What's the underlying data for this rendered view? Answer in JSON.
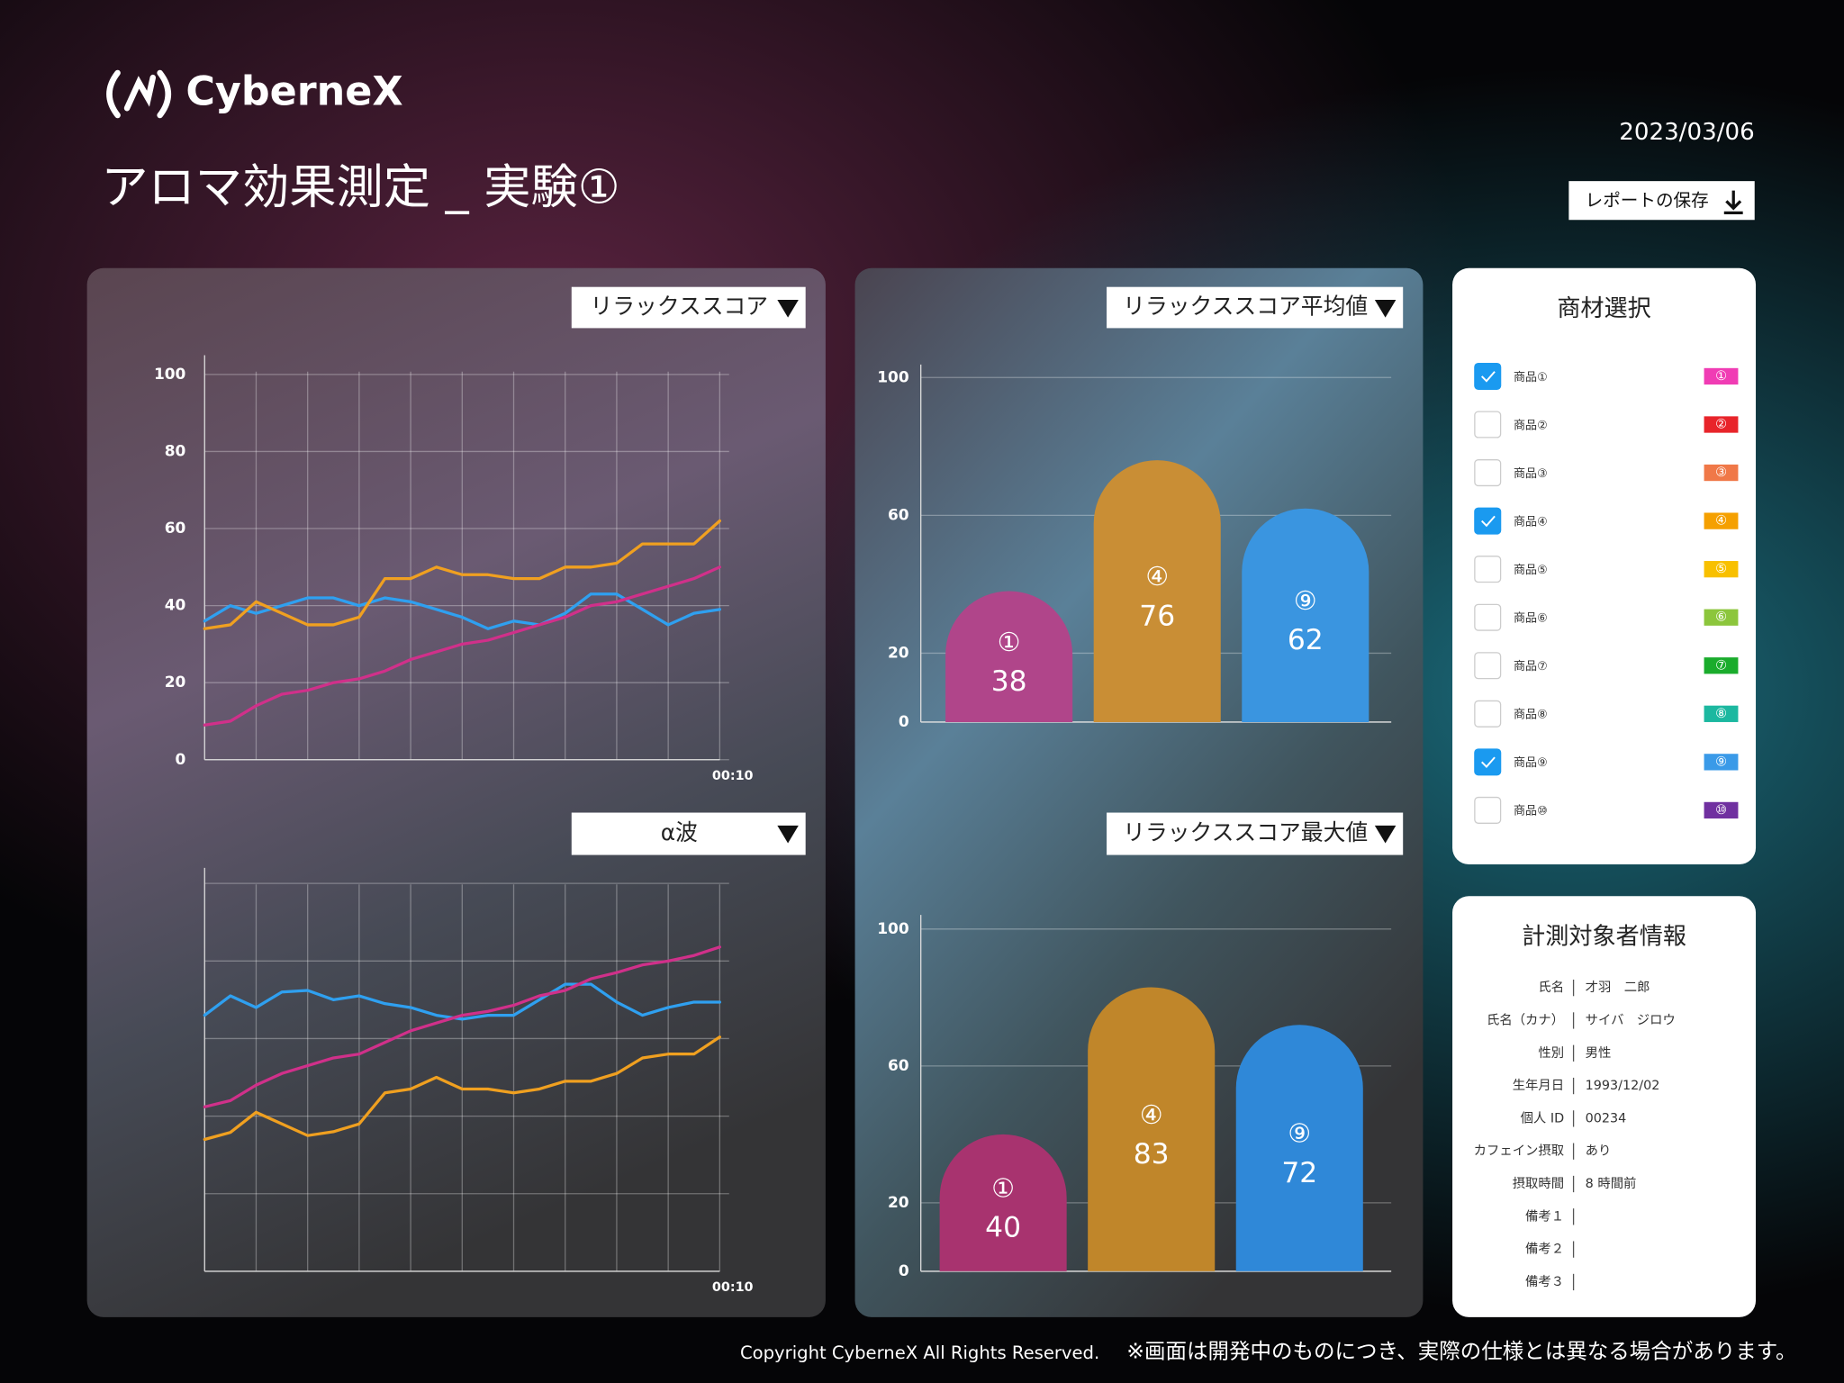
{
  "header": {
    "logo": "CyberneX",
    "title": "アロマ効果測定 _ 実験①",
    "date": "2023/03/06",
    "save_button": "レポートの保存"
  },
  "chart_data": [
    {
      "type": "line",
      "title": "リラックススコア",
      "x": [
        0,
        0.5,
        1,
        1.5,
        2,
        2.5,
        3,
        3.5,
        4,
        4.5,
        5,
        5.5,
        6,
        6.5,
        7,
        7.5,
        8,
        8.5,
        9,
        9.5,
        10
      ],
      "xlim": [
        0,
        10
      ],
      "xticks": [
        {
          "value": 10,
          "label": "00:10"
        }
      ],
      "xgrid": [
        1,
        2,
        3,
        4,
        5,
        6,
        7,
        8,
        9,
        10
      ],
      "ylim": [
        0,
        105
      ],
      "yticks": [
        0,
        20,
        40,
        60,
        80,
        100
      ],
      "grid": true,
      "series": [
        {
          "color": "#2fa0f0",
          "values": [
            36,
            40,
            38,
            40,
            42,
            42,
            40,
            42,
            41,
            39,
            37,
            34,
            36,
            35,
            38,
            43,
            43,
            39,
            35,
            38,
            39
          ]
        },
        {
          "color": "#f0a020",
          "values": [
            34,
            35,
            41,
            38,
            35,
            35,
            37,
            47,
            47,
            50,
            48,
            48,
            47,
            47,
            50,
            50,
            51,
            56,
            56,
            56,
            62
          ]
        },
        {
          "color": "#d0308a",
          "values": [
            9,
            10,
            14,
            17,
            18,
            20,
            21,
            23,
            26,
            28,
            30,
            31,
            33,
            35,
            37,
            40,
            41,
            43,
            45,
            47,
            50
          ]
        }
      ]
    },
    {
      "type": "line",
      "title": "α波",
      "x": [
        0,
        0.5,
        1,
        1.5,
        2,
        2.5,
        3,
        3.5,
        4,
        4.5,
        5,
        5.5,
        6,
        6.5,
        7,
        7.5,
        8,
        8.5,
        9,
        9.5,
        10
      ],
      "xlim": [
        0,
        10
      ],
      "xticks": [
        {
          "value": 10,
          "label": "00:10"
        }
      ],
      "xgrid": [
        1,
        2,
        3,
        4,
        5,
        6,
        7,
        8,
        9,
        10
      ],
      "ylim": [
        0,
        5.2
      ],
      "ygrid": [
        1,
        2,
        3,
        4,
        5
      ],
      "series": [
        {
          "color": "#2fa0f0",
          "values": [
            3.3,
            3.55,
            3.4,
            3.6,
            3.62,
            3.5,
            3.55,
            3.45,
            3.4,
            3.3,
            3.25,
            3.3,
            3.3,
            3.5,
            3.7,
            3.7,
            3.47,
            3.3,
            3.4,
            3.47,
            3.47
          ]
        },
        {
          "color": "#f0a020",
          "values": [
            1.7,
            1.79,
            2.05,
            1.9,
            1.75,
            1.8,
            1.9,
            2.3,
            2.35,
            2.5,
            2.35,
            2.35,
            2.3,
            2.35,
            2.45,
            2.45,
            2.55,
            2.75,
            2.8,
            2.8,
            3.02
          ]
        },
        {
          "color": "#d0308a",
          "values": [
            2.12,
            2.2,
            2.4,
            2.55,
            2.65,
            2.75,
            2.8,
            2.95,
            3.1,
            3.2,
            3.3,
            3.35,
            3.43,
            3.55,
            3.62,
            3.77,
            3.85,
            3.95,
            4.0,
            4.07,
            4.18
          ]
        }
      ]
    },
    {
      "type": "bar",
      "title": "リラックススコア平均値",
      "categories": [
        "①",
        "④",
        "⑨"
      ],
      "values": [
        38,
        76,
        62
      ],
      "colors": [
        "#b0458a",
        "#c98e35",
        "#3a95e0"
      ],
      "ylim": [
        0,
        100
      ],
      "yticks": [
        0,
        20,
        60,
        100
      ],
      "grid": true
    },
    {
      "type": "bar",
      "title": "リラックススコア最大値",
      "categories": [
        "①",
        "④",
        "⑨"
      ],
      "values": [
        40,
        83,
        72
      ],
      "colors": [
        "#a8336f",
        "#c0862a",
        "#2f88d8"
      ],
      "ylim": [
        0,
        100
      ],
      "yticks": [
        0,
        20,
        60,
        100
      ],
      "grid": true
    }
  ],
  "product_panel": {
    "title": "商材選択",
    "items": [
      {
        "label": "商品①",
        "checked": true,
        "badge": "①",
        "color": "#f03cb4"
      },
      {
        "label": "商品②",
        "checked": false,
        "badge": "②",
        "color": "#e8242a"
      },
      {
        "label": "商品③",
        "checked": false,
        "badge": "③",
        "color": "#f07848"
      },
      {
        "label": "商品④",
        "checked": true,
        "badge": "④",
        "color": "#f5a000"
      },
      {
        "label": "商品⑤",
        "checked": false,
        "badge": "⑤",
        "color": "#f8c000"
      },
      {
        "label": "商品⑥",
        "checked": false,
        "badge": "⑥",
        "color": "#8cc63c"
      },
      {
        "label": "商品⑦",
        "checked": false,
        "badge": "⑦",
        "color": "#1aac2c"
      },
      {
        "label": "商品⑧",
        "checked": false,
        "badge": "⑧",
        "color": "#1cb8a0"
      },
      {
        "label": "商品⑨",
        "checked": true,
        "badge": "⑨",
        "color": "#3a9ae8"
      },
      {
        "label": "商品⑩",
        "checked": false,
        "badge": "⑩",
        "color": "#7030a0"
      }
    ]
  },
  "subject_panel": {
    "title": "計測対象者情報",
    "rows": [
      {
        "label": "氏名",
        "value": "才羽　二郎"
      },
      {
        "label": "氏名（カナ）",
        "value": "サイバ　ジロウ"
      },
      {
        "label": "性別",
        "value": "男性"
      },
      {
        "label": "生年月日",
        "value": "1993/12/02"
      },
      {
        "label": "個人 ID",
        "value": "00234"
      },
      {
        "label": "カフェイン摂取",
        "value": "あり"
      },
      {
        "label": "摂取時間",
        "value": "8 時間前"
      },
      {
        "label": "備考１"
      },
      {
        "label": "備考２"
      },
      {
        "label": "備考３"
      }
    ]
  },
  "footer": {
    "copyright": "Copyright CyberneX All Rights Reserved.",
    "note": "※画面は開発中のものにつき、実際の仕様とは異なる場合があります。"
  }
}
